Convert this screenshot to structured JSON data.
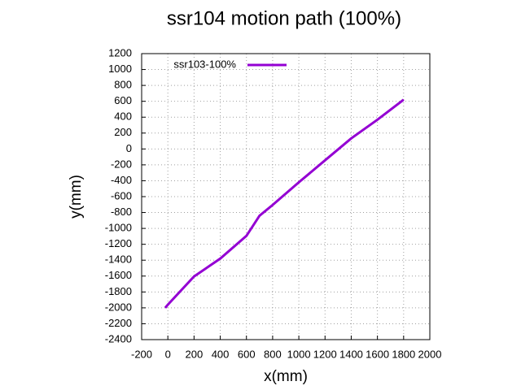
{
  "chart_data": {
    "type": "line",
    "title": "ssr104 motion path (100%)",
    "x_label": "x(mm)",
    "y_label": "y(mm)",
    "series": [
      {
        "name": "ssr103-100%",
        "color": "#9400d3",
        "x": [
          -20,
          0,
          200,
          400,
          600,
          700,
          800,
          1000,
          1200,
          1400,
          1600,
          1800
        ],
        "values": [
          -2000,
          -1960,
          -1605,
          -1380,
          -1094,
          -840,
          -705,
          -420,
          -143,
          133,
          368,
          620
        ]
      }
    ],
    "xlim": [
      -200,
      2000
    ],
    "xticks": [
      -200,
      0,
      200,
      400,
      600,
      800,
      1000,
      1200,
      1400,
      1600,
      1800,
      2000
    ],
    "ylim": [
      -2400,
      1200
    ],
    "yticks": [
      -2400,
      -2200,
      -2000,
      -1800,
      -1600,
      -1400,
      -1200,
      -1000,
      -800,
      -600,
      -400,
      -200,
      0,
      200,
      400,
      600,
      800,
      1000,
      1200
    ],
    "grid": true,
    "legend": "top-left"
  }
}
